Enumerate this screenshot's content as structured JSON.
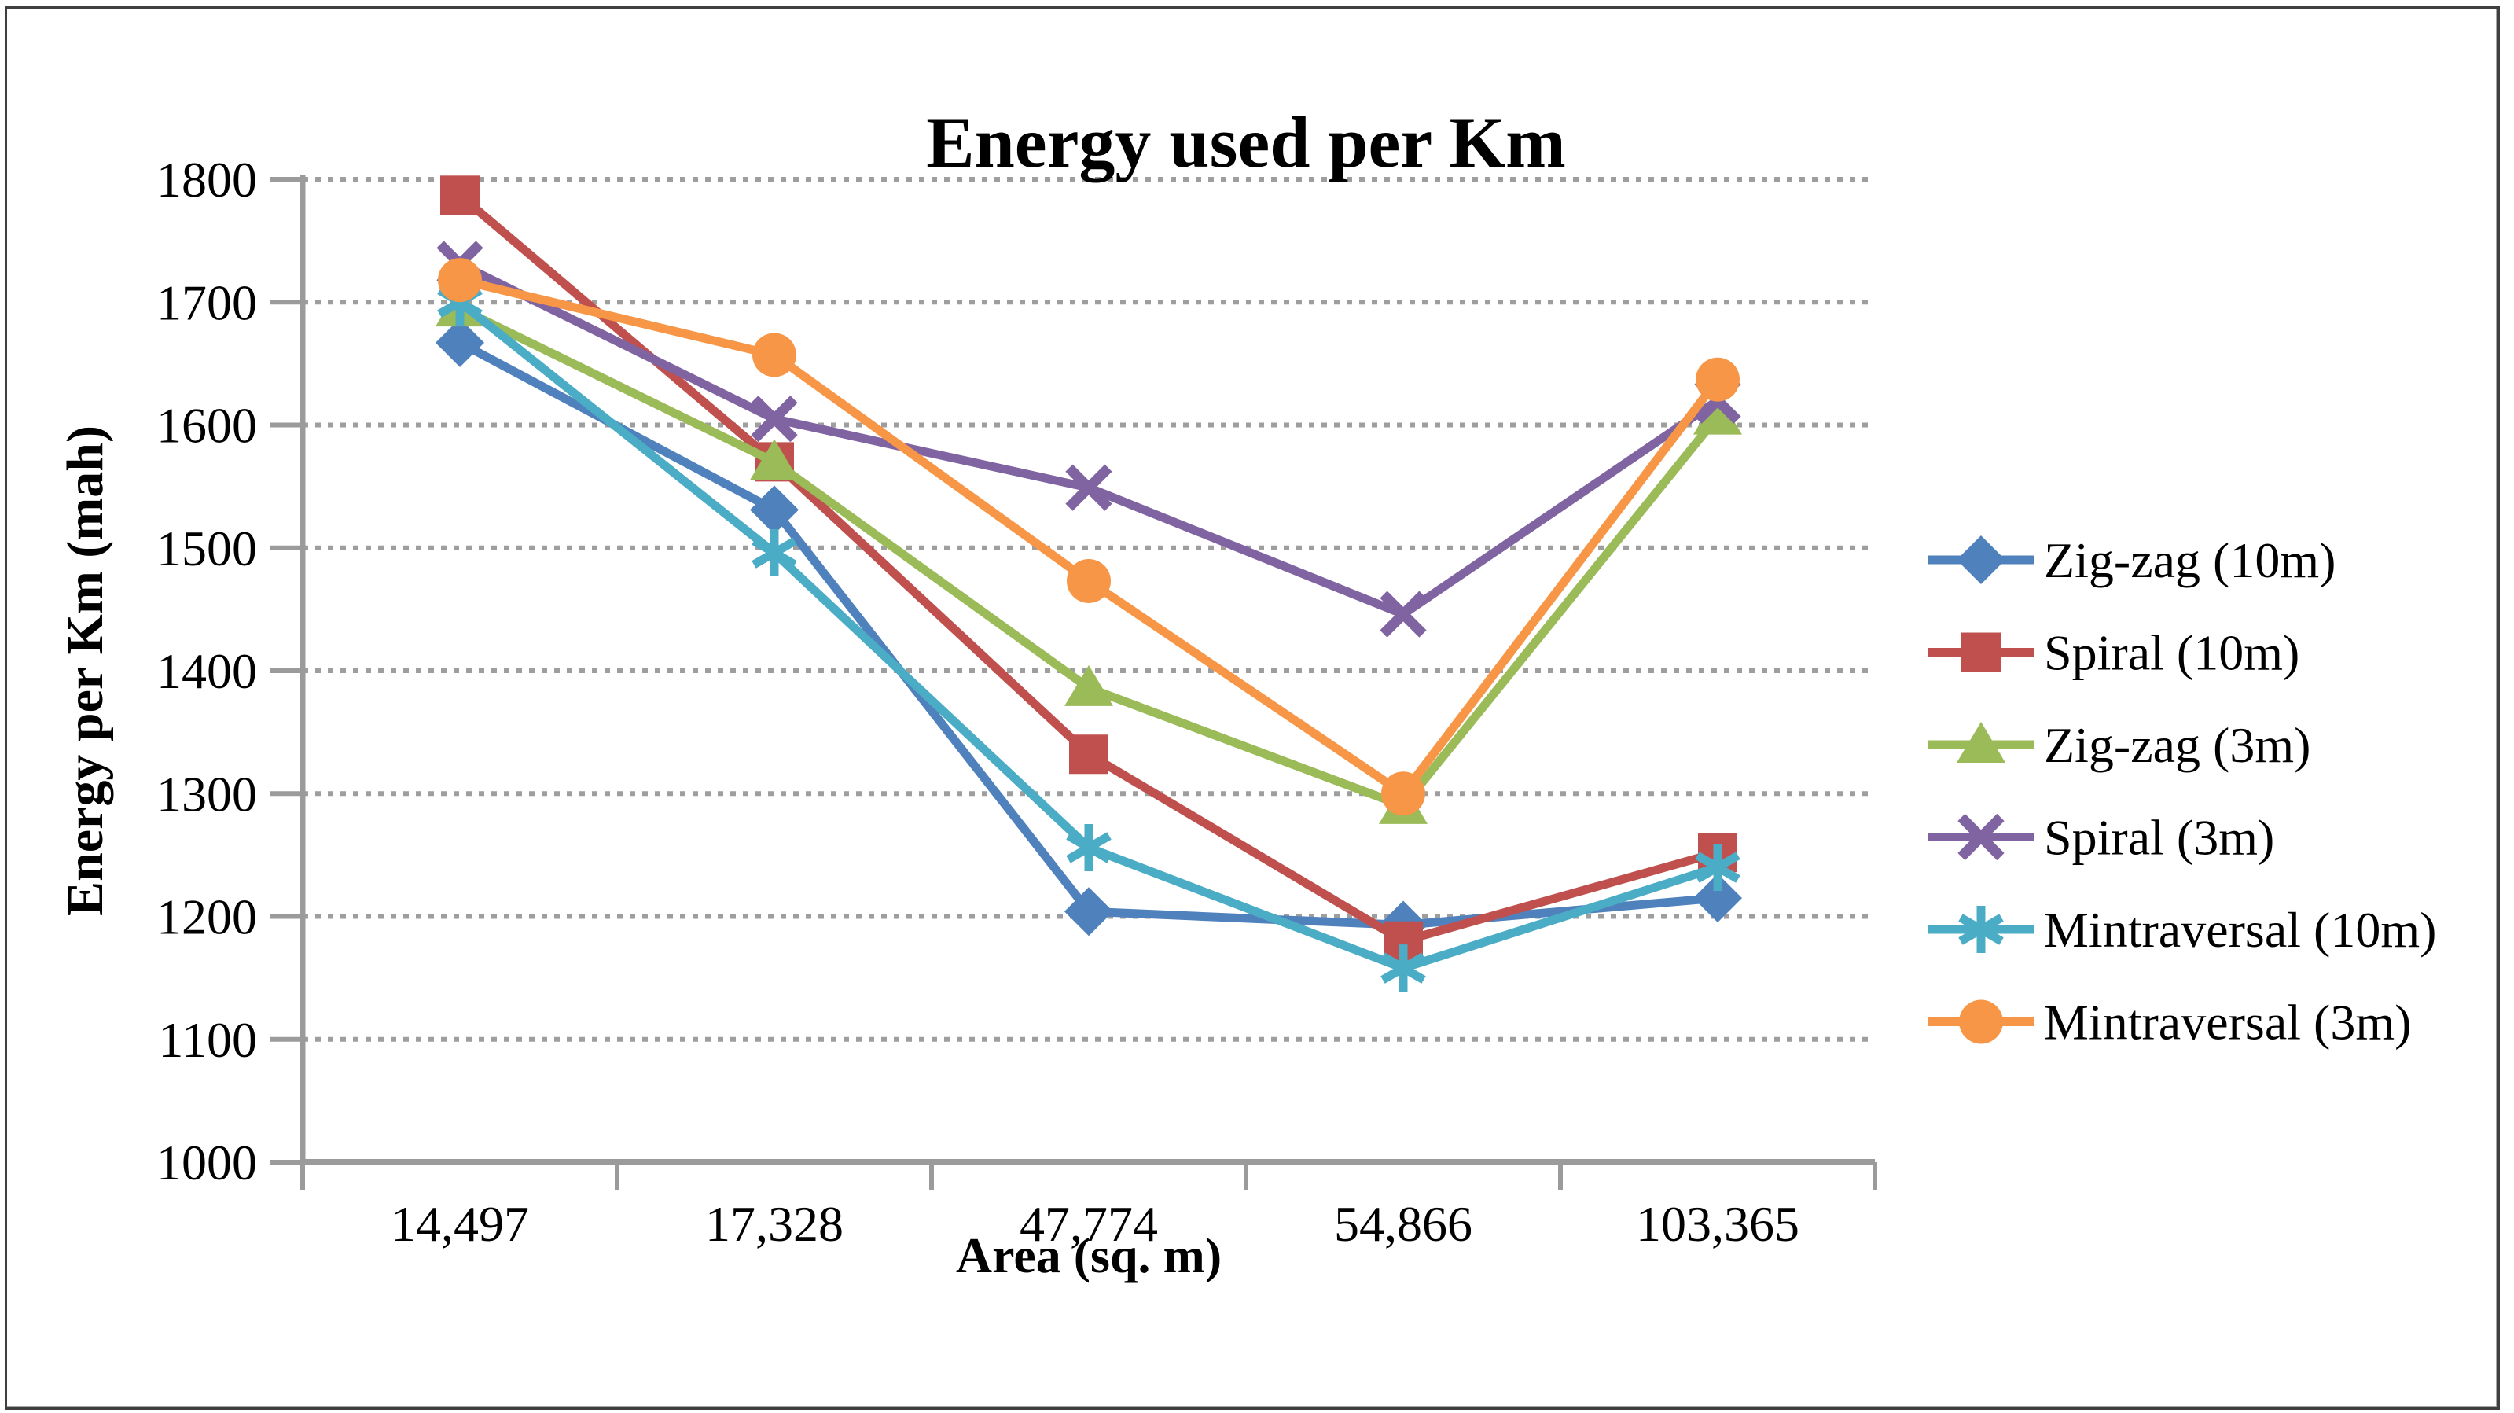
{
  "figure": {
    "kind": "excel-style line chart"
  },
  "chart_data": {
    "type": "line",
    "title": "Energy used per Km",
    "xlabel": "Area (sq. m)",
    "ylabel": "Energy per Km (mah)",
    "categories": [
      "14,497",
      "17,328",
      "47,774",
      "54,866",
      "103,365"
    ],
    "series": [
      {
        "name": "Zig-zag (10m)",
        "marker": "diamond",
        "color": "#4F81BD",
        "values": [
          1667,
          1531,
          1204,
          1193,
          1215
        ]
      },
      {
        "name": "Spiral (10m)",
        "marker": "square",
        "color": "#C0504D",
        "values": [
          1787,
          1570,
          1332,
          1180,
          1252
        ]
      },
      {
        "name": "Zig-zag (3m)",
        "marker": "triangle",
        "color": "#9BBB59",
        "values": [
          1695,
          1570,
          1386,
          1290,
          1607
        ]
      },
      {
        "name": "Spiral (3m)",
        "marker": "x",
        "color": "#8064A2",
        "values": [
          1731,
          1605,
          1549,
          1446,
          1620
        ]
      },
      {
        "name": "Mintraversal (10m)",
        "marker": "asterisk",
        "color": "#4BACC6",
        "values": [
          1700,
          1496,
          1256,
          1158,
          1240
        ]
      },
      {
        "name": "Mintraversal (3m)",
        "marker": "circle",
        "color": "#F79646",
        "values": [
          1718,
          1657,
          1473,
          1300,
          1637
        ]
      }
    ],
    "ylim": [
      1000,
      1800
    ],
    "ytick_interval": 100,
    "ytick_labels": [
      "1000",
      "1100",
      "1200",
      "1300",
      "1400",
      "1500",
      "1600",
      "1700",
      "1800"
    ],
    "grid": "horizontal dotted gridlines at every 100",
    "legend_position": "right",
    "axis_color": "#9b9b9b",
    "gridline_color": "#9e9e9e",
    "text_color": "#000000"
  }
}
